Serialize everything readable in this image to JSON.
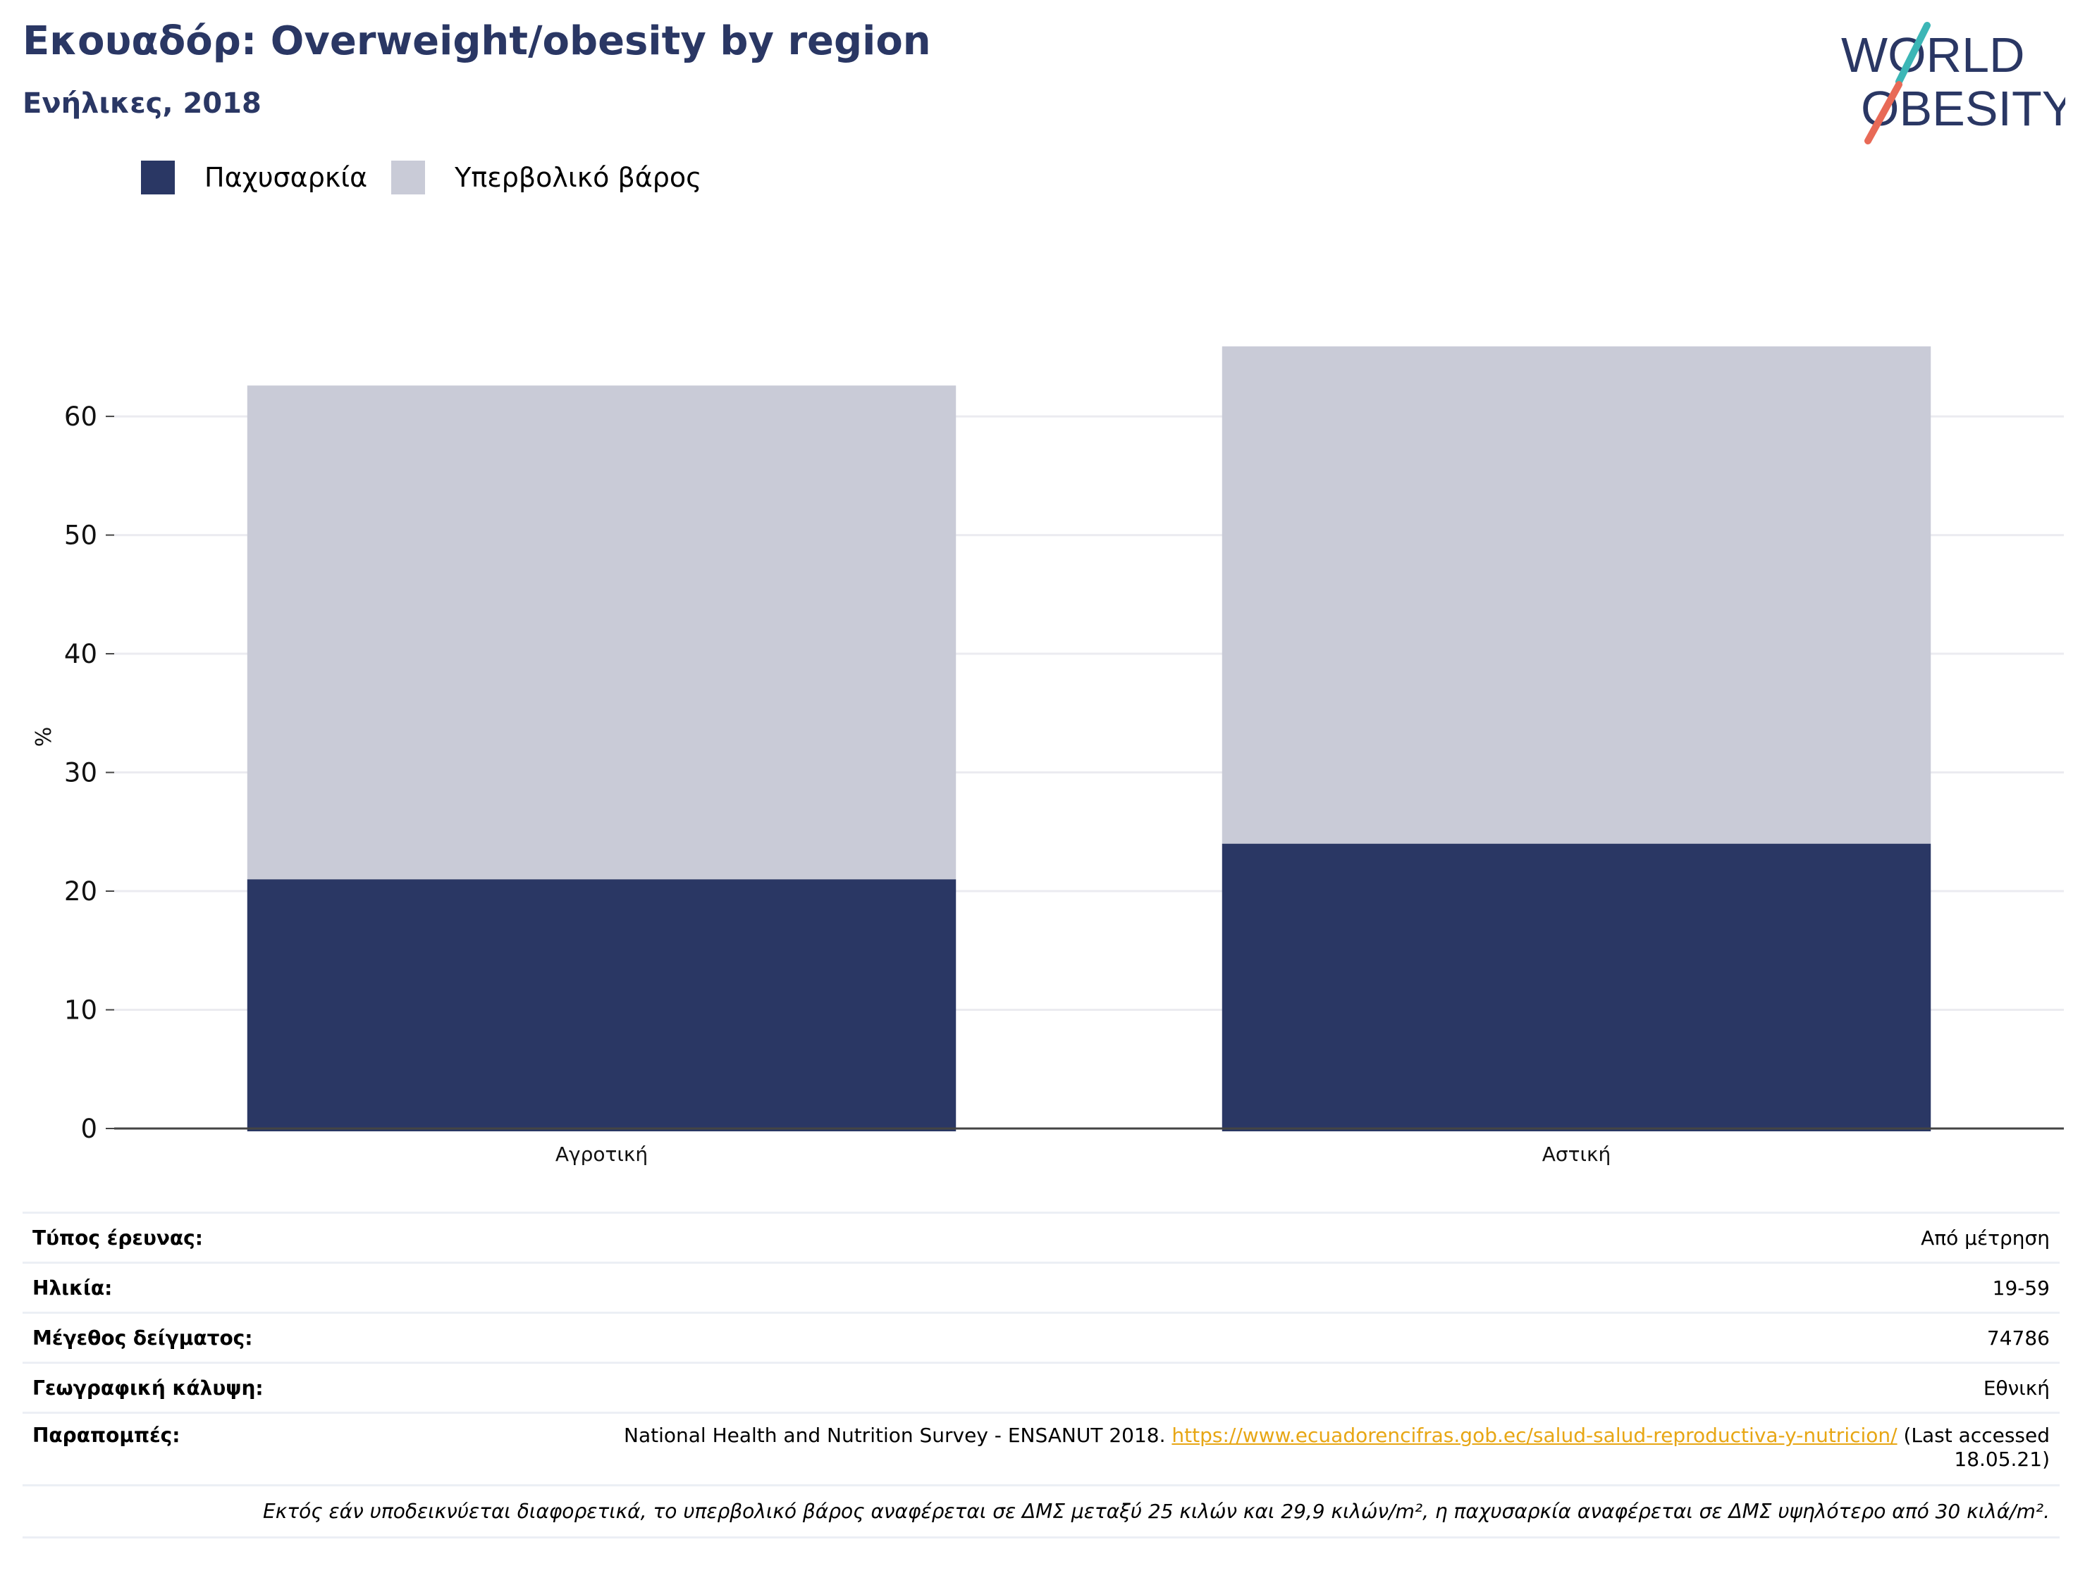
{
  "header": {
    "title": "Εκουαδόρ: Overweight/obesity by region",
    "subtitle": "Ενήλικες, 2018"
  },
  "logo": {
    "line1": "WORLD",
    "line2": "OBESITY",
    "colors": {
      "navy": "#2a3764",
      "teal": "#3cb6b6",
      "coral": "#e86a57"
    }
  },
  "legend": [
    {
      "label": "Παχυσαρκία",
      "color": "#2a3764"
    },
    {
      "label": "Υπερβολικό βάρος",
      "color": "#c9cbd7"
    }
  ],
  "chart_data": {
    "type": "bar",
    "stacked": true,
    "categories": [
      "Αγροτική",
      "Αστική"
    ],
    "series": [
      {
        "name": "Παχυσαρκία",
        "values": [
          21.0,
          24.0
        ],
        "color": "#2a3764"
      },
      {
        "name": "Υπερβολικό βάρος",
        "values": [
          41.6,
          41.9
        ],
        "color": "#c9cbd7"
      }
    ],
    "ylabel": "%",
    "xlabel": "",
    "ylim": [
      0,
      66
    ],
    "yticks": [
      0,
      10,
      20,
      30,
      40,
      50,
      60
    ],
    "grid": true,
    "legend_position": "top-left"
  },
  "meta": {
    "survey_type": {
      "label": "Τύπος έρευνας:",
      "value": "Από μέτρηση"
    },
    "age": {
      "label": "Ηλικία:",
      "value": "19-59"
    },
    "sample_size": {
      "label": "Μέγεθος δείγματος:",
      "value": "74786"
    },
    "coverage": {
      "label": "Γεωγραφική κάλυψη:",
      "value": "Εθνική"
    },
    "references": {
      "label": "Παραπομπές:",
      "text_before": "National Health and Nutrition Survey - ENSANUT 2018. ",
      "link": "https://www.ecuadorencifras.gob.ec/salud-salud-reproductiva-y-nutricion/",
      "text_after": " (Last accessed 18.05.21)"
    },
    "footnote": "Εκτός εάν υποδεικνύεται διαφορετικά, το υπερβολικό βάρος αναφέρεται σε ΔΜΣ μεταξύ 25 κιλών και 29,9 κιλών/m², η παχυσαρκία αναφέρεται σε ΔΜΣ υψηλότερο από 30 κιλά/m²."
  }
}
